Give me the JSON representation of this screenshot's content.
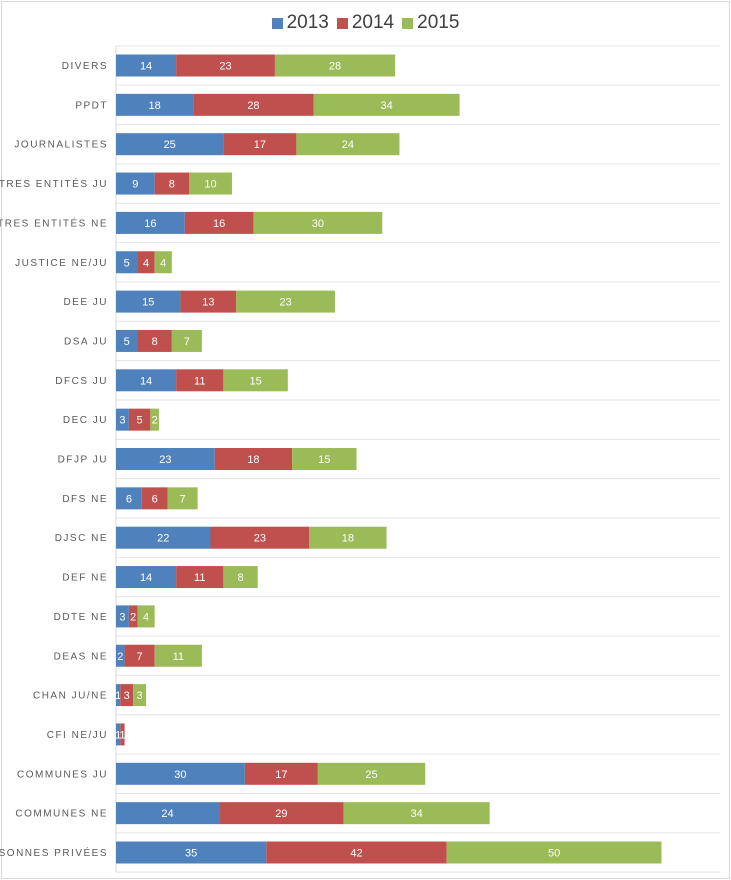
{
  "chart_data": {
    "type": "bar",
    "orientation": "horizontal",
    "stacked": true,
    "title": "",
    "xlabel": "",
    "ylabel": "",
    "legend_position": "top",
    "grid": "horizontal separators between categories",
    "categories": [
      "DIVERS",
      "PPDT",
      "JOURNALISTES",
      "AUTRES ENTITÉS JU",
      "AUTRES ENTITÉS NE",
      "JUSTICE NE/JU",
      "DEE JU",
      "DSA JU",
      "DFCS JU",
      "DEC JU",
      "DFJP JU",
      "DFS NE",
      "DJSC NE",
      "DEF NE",
      "DDTE NE",
      "DEAS NE",
      "CHAN JU/NE",
      "CFI NE/JU",
      "COMMUNES JU",
      "COMMUNES NE",
      "PERSONNES PRIVÉES"
    ],
    "series": [
      {
        "name": "2013",
        "color": "#4f81bd",
        "values": [
          14,
          18,
          25,
          9,
          16,
          5,
          15,
          5,
          14,
          3,
          23,
          6,
          22,
          14,
          3,
          2,
          1,
          1,
          30,
          24,
          35
        ]
      },
      {
        "name": "2014",
        "color": "#c0504d",
        "values": [
          23,
          28,
          17,
          8,
          16,
          4,
          13,
          8,
          11,
          5,
          18,
          6,
          23,
          11,
          2,
          7,
          3,
          1,
          17,
          29,
          42
        ]
      },
      {
        "name": "2015",
        "color": "#9bbb59",
        "values": [
          28,
          34,
          24,
          10,
          30,
          4,
          23,
          7,
          15,
          2,
          15,
          7,
          18,
          8,
          4,
          11,
          3,
          0,
          25,
          34,
          50
        ]
      }
    ]
  }
}
